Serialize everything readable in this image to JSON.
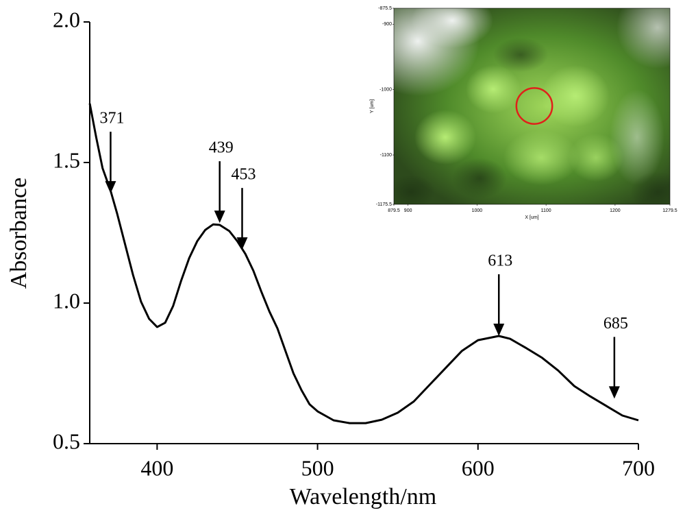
{
  "chart_data": [
    {
      "type": "line",
      "xlabel": "Wavelength/nm",
      "ylabel": "Absorbance",
      "color": "#000000",
      "x": [
        358,
        362,
        366,
        371,
        375,
        380,
        385,
        390,
        395,
        400,
        405,
        410,
        415,
        420,
        425,
        430,
        435,
        439,
        445,
        450,
        455,
        460,
        465,
        470,
        475,
        480,
        485,
        490,
        495,
        500,
        510,
        520,
        530,
        540,
        550,
        560,
        570,
        580,
        590,
        600,
        613,
        620,
        630,
        640,
        650,
        660,
        670,
        680,
        690,
        700
      ],
      "values": [
        1.71,
        1.59,
        1.48,
        1.4,
        1.32,
        1.21,
        1.1,
        1.005,
        0.944,
        0.915,
        0.93,
        0.99,
        1.08,
        1.16,
        1.22,
        1.26,
        1.28,
        1.278,
        1.256,
        1.22,
        1.175,
        1.115,
        1.04,
        0.97,
        0.91,
        0.83,
        0.75,
        0.69,
        0.64,
        0.615,
        0.583,
        0.573,
        0.573,
        0.585,
        0.61,
        0.65,
        0.71,
        0.77,
        0.83,
        0.868,
        0.883,
        0.873,
        0.84,
        0.805,
        0.76,
        0.705,
        0.668,
        0.634,
        0.6,
        0.583
      ],
      "xlim": [
        358,
        700
      ],
      "xticks": [
        400,
        500,
        600,
        700
      ],
      "ylim": [
        0.5,
        2.0
      ],
      "yticks": [
        {
          "value": 0.5,
          "label": "0.5"
        },
        {
          "value": 1.0,
          "label": "1.0"
        },
        {
          "value": 1.5,
          "label": "1.5"
        },
        {
          "value": 2.0,
          "label": "2.0"
        }
      ],
      "annotations": [
        {
          "x": 371,
          "y": 1.39
        },
        {
          "x": 439,
          "y": 1.285
        },
        {
          "x": 453,
          "y": 1.19
        },
        {
          "x": 613,
          "y": 0.883
        },
        {
          "x": 685,
          "y": 0.66
        }
      ]
    },
    {
      "type": "image",
      "xlabel": "X [um]",
      "ylabel": "Y [um]",
      "xlim": [
        879.5,
        1279.5
      ],
      "xticks": [
        879.5,
        900,
        1000,
        1100,
        1200,
        1279.5
      ],
      "ylim": [
        -1175.5,
        -875.5
      ],
      "yticks": [
        -1175.5,
        -1100,
        -1000,
        -900,
        -875.5
      ],
      "circle": {
        "x": 1083,
        "y": -1025,
        "r": 26,
        "color": "#e0201a"
      }
    }
  ]
}
